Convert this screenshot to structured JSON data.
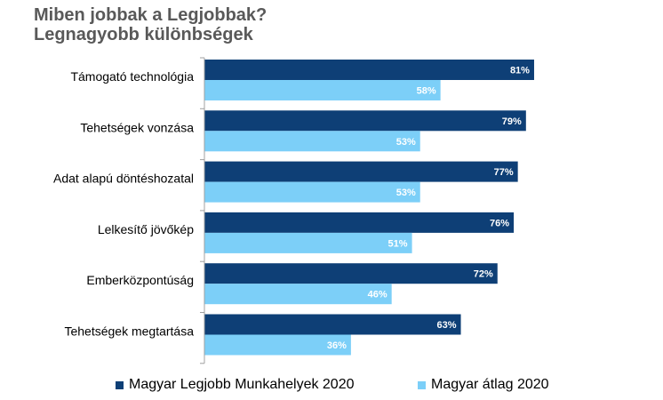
{
  "title_line1": "Miben jobbak a Legjobbak?",
  "title_line2": "Legnagyobb különbségek",
  "colors": {
    "series1": "#0E3F76",
    "series2": "#7CCFF8",
    "axis": "#A0A0A0"
  },
  "chart_data": {
    "type": "bar",
    "orientation": "horizontal",
    "categories": [
      "Támogató technológia",
      "Tehetségek vonzása",
      "Adat alapú döntéshozatal",
      "Lelkesítő jövőkép",
      "Emberközpontúság",
      "Tehetségek megtartása"
    ],
    "series": [
      {
        "name": "Magyar Legjobb Munkahelyek 2020",
        "values": [
          81,
          79,
          77,
          76,
          72,
          63
        ],
        "labels": [
          "81%",
          "79%",
          "77%",
          "76%",
          "72%",
          "63%"
        ]
      },
      {
        "name": "Magyar átlag 2020",
        "values": [
          58,
          53,
          53,
          51,
          46,
          36
        ],
        "labels": [
          "58%",
          "53%",
          "53%",
          "51%",
          "46%",
          "36%"
        ]
      }
    ],
    "xlim": [
      0,
      100
    ],
    "grid": false,
    "legend_position": "bottom"
  }
}
